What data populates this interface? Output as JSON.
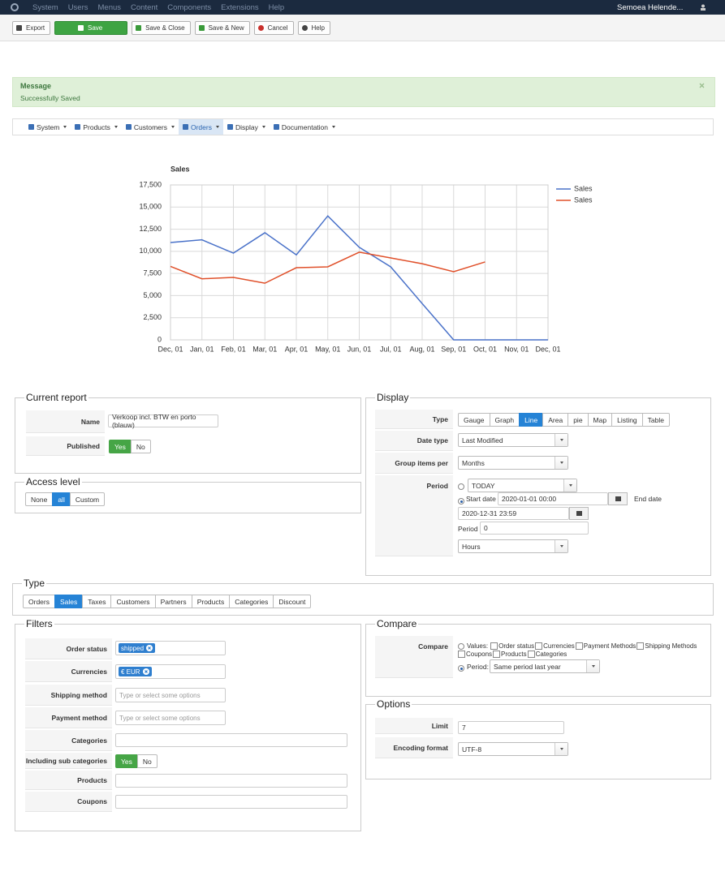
{
  "top_menu": [
    "System",
    "Users",
    "Menus",
    "Content",
    "Components",
    "Extensions",
    "Help"
  ],
  "user": "Semoea Helende...",
  "toolbar": [
    "Export",
    "Save",
    "Save & Close",
    "Save & New",
    "Cancel",
    "Help"
  ],
  "message": {
    "title": "Message",
    "text": "Successfully Saved"
  },
  "submenu": {
    "items": [
      "System",
      "Products",
      "Customers",
      "Orders",
      "Display",
      "Documentation"
    ],
    "active": 3
  },
  "chart_data": {
    "type": "line",
    "title": "Sales",
    "categories": [
      "Dec, 01",
      "Jan, 01",
      "Feb, 01",
      "Mar, 01",
      "Apr, 01",
      "May, 01",
      "Jun, 01",
      "Jul, 01",
      "Aug, 01",
      "Sep, 01",
      "Oct, 01",
      "Nov, 01",
      "Dec, 01"
    ],
    "series": [
      {
        "name": "Sales",
        "color": "#4a72c9",
        "values": [
          11000,
          11300,
          9800,
          12100,
          9600,
          14000,
          10450,
          8250,
          4100,
          0,
          0,
          0,
          0
        ]
      },
      {
        "name": "Sales",
        "color": "#e0502a",
        "values": [
          8300,
          6900,
          7050,
          6400,
          8150,
          8250,
          9900,
          9250,
          8600,
          7700,
          8800,
          null,
          null
        ]
      }
    ],
    "ylim": [
      0,
      17500
    ],
    "yticks": [
      0,
      {
        "value": 2500,
        "label": "2,500"
      },
      {
        "value": 5000,
        "label": "5,000"
      },
      {
        "value": 7500,
        "label": "7,500"
      },
      {
        "value": 10000,
        "label": "10,000"
      },
      {
        "value": 12500,
        "label": "12,500"
      },
      {
        "value": 15000,
        "label": "15,000"
      },
      {
        "value": 17500,
        "label": "17,500"
      }
    ],
    "grid": true,
    "legend": "right"
  },
  "current_report": {
    "legend": "Current report",
    "name_label": "Name",
    "name_value": "Verkoop incl. BTW en porto (blauw)",
    "published_label": "Published",
    "published_options": [
      "Yes",
      "No"
    ],
    "published_active": 0
  },
  "access_level": {
    "legend": "Access level",
    "options": [
      "None",
      "all",
      "Custom"
    ],
    "active": 1
  },
  "display": {
    "legend": "Display",
    "type_label": "Type",
    "type_options": [
      "Gauge",
      "Graph",
      "Line",
      "Area",
      "pie",
      "Map",
      "Listing",
      "Table"
    ],
    "type_active": 2,
    "date_type_label": "Date type",
    "date_type_value": "Last Modified",
    "group_label": "Group items per",
    "group_value": "Months",
    "period_label": "Period",
    "period_today": "TODAY",
    "start_label": "Start date",
    "start_value": "2020-01-01 00:00",
    "end_label": "End date",
    "end_value": "2020-12-31 23:59",
    "period_count_label": "Period",
    "period_count_value": "0",
    "period_unit": "Hours"
  },
  "type_section": {
    "legend": "Type",
    "options": [
      "Orders",
      "Sales",
      "Taxes",
      "Customers",
      "Partners",
      "Products",
      "Categories",
      "Discount"
    ],
    "active": 1
  },
  "filters": {
    "legend": "Filters",
    "order_status_label": "Order status",
    "order_status_tag": "shipped",
    "currencies_label": "Currencies",
    "currencies_tag": "€ EUR",
    "shipping_label": "Shipping method",
    "shipping_placeholder": "Type or select some options",
    "payment_label": "Payment method",
    "payment_placeholder": "Type or select some options",
    "categories_label": "Categories",
    "sub_label": "Including sub categories",
    "sub_options": [
      "Yes",
      "No"
    ],
    "sub_active": 0,
    "products_label": "Products",
    "coupons_label": "Coupons"
  },
  "compare": {
    "legend": "Compare",
    "label": "Compare",
    "values_label": "Values:",
    "checkboxes": [
      "Order status",
      "Currencies",
      "Payment Methods",
      "Shipping Methods",
      "Coupons",
      "Products",
      "Categories"
    ],
    "period_label": "Period:",
    "period_value": "Same period last year"
  },
  "options": {
    "legend": "Options",
    "limit_label": "Limit",
    "limit_value": "7",
    "encoding_label": "Encoding format",
    "encoding_value": "UTF-8"
  }
}
